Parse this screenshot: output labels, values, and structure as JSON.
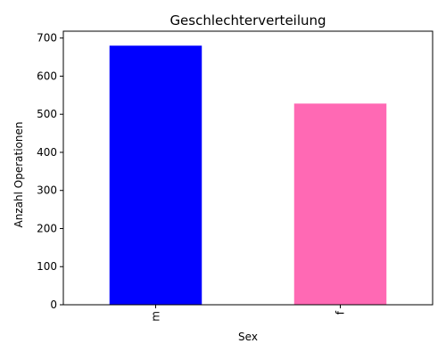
{
  "chart_data": {
    "type": "bar",
    "title": "Geschlechterverteilung",
    "xlabel": "Sex",
    "ylabel": "Anzahl Operationen",
    "categories": [
      "m",
      "f"
    ],
    "values": [
      680,
      528
    ],
    "colors": [
      "#0000ff",
      "#ff69b4"
    ],
    "ylim": [
      0,
      718
    ],
    "yticks": [
      0,
      100,
      200,
      300,
      400,
      500,
      600,
      700
    ],
    "grid": false,
    "legend": "none"
  }
}
